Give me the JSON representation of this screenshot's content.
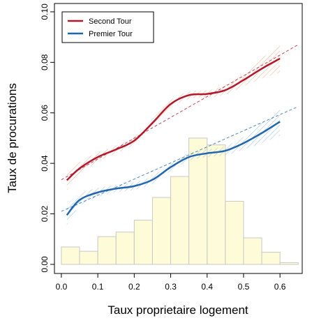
{
  "chart_data": {
    "type": "line",
    "x_label": "Taux proprietaire logement",
    "y_label": "Taux de procurations",
    "xlim": [
      -0.019,
      0.661
    ],
    "ylim": [
      -0.0036,
      0.1033
    ],
    "xticks": [
      {
        "value": 0,
        "label": "0.0"
      },
      0.1,
      0.2,
      0.3,
      0.4,
      0.5,
      0.6
    ],
    "yticks": [
      {
        "value": 0,
        "label": "0.00"
      },
      0.02,
      0.04,
      0.06,
      0.08,
      {
        "value": 0.1,
        "label": "0.10"
      }
    ],
    "legend": "top-left",
    "x": [
      0.015,
      0.05,
      0.1,
      0.15,
      0.2,
      0.25,
      0.3,
      0.35,
      0.4,
      0.45,
      0.5,
      0.55,
      0.6
    ],
    "series": [
      {
        "name": "Second Tour",
        "color": "#b2182b",
        "values": [
          0.0333,
          0.038,
          0.0425,
          0.0455,
          0.049,
          0.056,
          0.0635,
          0.067,
          0.0675,
          0.069,
          0.073,
          0.0775,
          0.0815
        ],
        "lower": [
          0.0293,
          0.0355,
          0.0407,
          0.044,
          0.0475,
          0.0545,
          0.062,
          0.0655,
          0.066,
          0.0672,
          0.0705,
          0.0735,
          0.076
        ],
        "upper": [
          0.0373,
          0.0405,
          0.0443,
          0.047,
          0.0505,
          0.0575,
          0.065,
          0.0685,
          0.069,
          0.0708,
          0.0755,
          0.0815,
          0.087
        ],
        "band_color": "#f4b89a",
        "trend": {
          "x": [
            0,
            0.65
          ],
          "values": [
            0.0335,
            0.087
          ]
        }
      },
      {
        "name": "Premier Tour",
        "color": "#2166ac",
        "values": [
          0.0195,
          0.0255,
          0.0285,
          0.03,
          0.031,
          0.0335,
          0.0385,
          0.0425,
          0.044,
          0.045,
          0.048,
          0.052,
          0.0565
        ],
        "lower": [
          0.0155,
          0.023,
          0.0267,
          0.0285,
          0.0295,
          0.032,
          0.037,
          0.041,
          0.0425,
          0.0432,
          0.0455,
          0.048,
          0.051
        ],
        "upper": [
          0.0235,
          0.028,
          0.0303,
          0.0315,
          0.0325,
          0.035,
          0.04,
          0.044,
          0.0455,
          0.0468,
          0.0505,
          0.056,
          0.062
        ],
        "band_color": "#a6c8e6",
        "trend": {
          "x": [
            0,
            0.65
          ],
          "values": [
            0.021,
            0.0625
          ]
        }
      }
    ],
    "histogram": {
      "bins": [
        0,
        0.05,
        0.1,
        0.15,
        0.2,
        0.25,
        0.3,
        0.35,
        0.4,
        0.45,
        0.5,
        0.55,
        0.6,
        0.65
      ],
      "values": [
        0.0069,
        0.0052,
        0.011,
        0.0128,
        0.0175,
        0.0265,
        0.0348,
        0.05,
        0.0473,
        0.025,
        0.0105,
        0.0048,
        0.0007
      ],
      "color": "#fdfbd8"
    }
  }
}
